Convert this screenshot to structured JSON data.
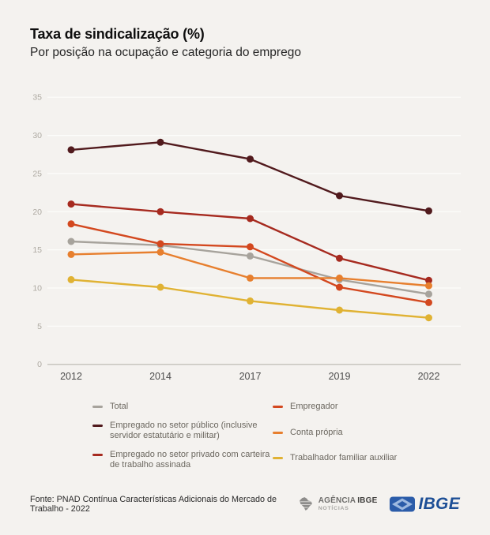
{
  "title": "Taxa de sindicalização (%)",
  "subtitle": "Por posição na ocupação e categoria do emprego",
  "chart_data": {
    "type": "line",
    "categories": [
      "2012",
      "2014",
      "2017",
      "2019",
      "2022"
    ],
    "series": [
      {
        "name": "Total",
        "color": "#a7a39c",
        "values": [
          16.1,
          15.6,
          14.2,
          11.1,
          9.2
        ]
      },
      {
        "name": "Empregado no setor público (inclusive servidor estatutário e militar)",
        "color": "#511a1d",
        "values": [
          28.1,
          29.1,
          26.9,
          22.1,
          20.1
        ]
      },
      {
        "name": "Empregado no setor privado com carteira de trabalho assinada",
        "color": "#a62a1f",
        "values": [
          21.0,
          20.0,
          19.1,
          13.9,
          11.0
        ]
      },
      {
        "name": "Empregador",
        "color": "#d3481f",
        "values": [
          18.4,
          15.8,
          15.4,
          10.1,
          8.1
        ]
      },
      {
        "name": "Conta própria",
        "color": "#e77f2e",
        "values": [
          14.4,
          14.7,
          11.3,
          11.3,
          10.3
        ]
      },
      {
        "name": "Trabalhador familiar auxiliar",
        "color": "#e0b233",
        "values": [
          11.1,
          10.1,
          8.3,
          7.1,
          6.1
        ]
      }
    ],
    "ylim": [
      0,
      35
    ],
    "yticks": [
      0,
      5,
      10,
      15,
      20,
      25,
      30,
      35
    ],
    "grid": true,
    "legend_position": "bottom"
  },
  "legend_columns": [
    [
      0,
      1,
      2
    ],
    [
      3,
      4,
      5
    ]
  ],
  "footer": {
    "source": "Fonte: PNAD Contínua Características Adicionais do Mercado de Trabalho - 2022",
    "agencia_logo": {
      "agencia": "AGÊNCIA",
      "ibge": "IBGE",
      "noticias": "NOTÍCIAS"
    },
    "ibge_logo": {
      "text": "IBGE"
    }
  },
  "colors": {
    "background": "#f4f2ef",
    "gridline": "#fdfdfb",
    "axis_line": "#c8c5bf",
    "y_tick_text": "#aeaaa2",
    "x_tick_text": "#4c4c4c",
    "ibge_blue": "#1d4f96"
  }
}
